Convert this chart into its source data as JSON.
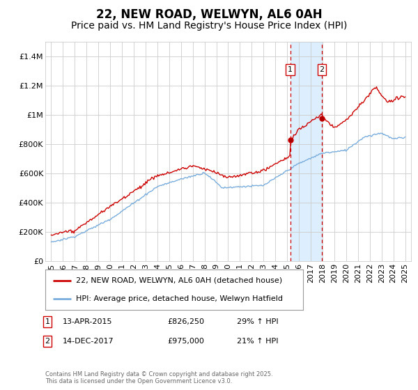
{
  "title": "22, NEW ROAD, WELWYN, AL6 0AH",
  "subtitle": "Price paid vs. HM Land Registry's House Price Index (HPI)",
  "xlim": [
    1994.5,
    2025.5
  ],
  "ylim": [
    0,
    1500000
  ],
  "yticks": [
    0,
    200000,
    400000,
    600000,
    800000,
    1000000,
    1200000,
    1400000
  ],
  "ytick_labels": [
    "£0",
    "£200K",
    "£400K",
    "£600K",
    "£800K",
    "£1M",
    "£1.2M",
    "£1.4M"
  ],
  "xticks": [
    1995,
    1996,
    1997,
    1998,
    1999,
    2000,
    2001,
    2002,
    2003,
    2004,
    2005,
    2006,
    2007,
    2008,
    2009,
    2010,
    2011,
    2012,
    2013,
    2014,
    2015,
    2016,
    2017,
    2018,
    2019,
    2020,
    2021,
    2022,
    2023,
    2024,
    2025
  ],
  "line1_color": "#cc0000",
  "line2_color": "#7aaddc",
  "span_color": "#ddeeff",
  "vline1_x": 2015.27,
  "vline2_x": 2017.95,
  "vline_color": "#cc0000",
  "sale1_y": 826250,
  "sale2_y": 975000,
  "label1": "22, NEW ROAD, WELWYN, AL6 0AH (detached house)",
  "label2": "HPI: Average price, detached house, Welwyn Hatfield",
  "annotation1_label": "1",
  "annotation1_date": "13-APR-2015",
  "annotation1_price": "£826,250",
  "annotation1_hpi": "29% ↑ HPI",
  "annotation2_label": "2",
  "annotation2_date": "14-DEC-2017",
  "annotation2_price": "£975,000",
  "annotation2_hpi": "21% ↑ HPI",
  "footer": "Contains HM Land Registry data © Crown copyright and database right 2025.\nThis data is licensed under the Open Government Licence v3.0.",
  "background_color": "#ffffff",
  "grid_color": "#cccccc",
  "title_fontsize": 12,
  "subtitle_fontsize": 10,
  "tick_fontsize": 8
}
